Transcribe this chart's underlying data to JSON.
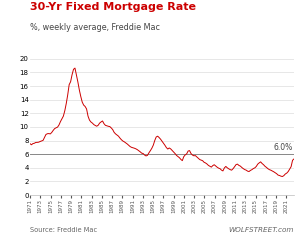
{
  "title": "30-Yr Fixed Mortgage Rate",
  "subtitle": "%, weekly average, Freddie Mac",
  "source_left": "Source: Freddie Mac",
  "source_right": "WOLFSTREET.com",
  "line_color": "#cc0000",
  "hline_value": 6.0,
  "hline_label": "6.0%",
  "hline_color": "#888888",
  "ylim": [
    0,
    20
  ],
  "yticks": [
    0,
    2,
    4,
    6,
    8,
    10,
    12,
    14,
    16,
    18,
    20
  ],
  "title_color": "#cc0000",
  "subtitle_color": "#444444",
  "bg_color": "#ffffff",
  "xtick_years": [
    "1971",
    "1973",
    "1975",
    "1977",
    "1979",
    "1981",
    "1983",
    "1985",
    "1987",
    "1989",
    "1991",
    "1993",
    "1995",
    "1997",
    "1999",
    "2001",
    "2003",
    "2005",
    "2007",
    "2009",
    "2011",
    "2013",
    "2015",
    "2017",
    "2019",
    "2021"
  ],
  "rates": [
    7.54,
    7.38,
    7.55,
    7.6,
    7.72,
    7.73,
    7.76,
    7.86,
    7.94,
    8.02,
    8.45,
    8.89,
    9.0,
    9.02,
    8.97,
    9.19,
    9.49,
    9.75,
    9.87,
    9.97,
    10.29,
    10.78,
    11.17,
    11.58,
    12.38,
    13.44,
    14.7,
    16.2,
    16.63,
    17.66,
    18.45,
    18.63,
    17.6,
    16.6,
    15.43,
    14.47,
    13.64,
    13.2,
    13.0,
    12.63,
    11.58,
    11.0,
    10.72,
    10.56,
    10.34,
    10.21,
    10.1,
    10.24,
    10.56,
    10.73,
    10.87,
    10.47,
    10.23,
    10.16,
    10.09,
    10.05,
    9.85,
    9.61,
    9.2,
    8.97,
    8.8,
    8.64,
    8.36,
    8.12,
    7.93,
    7.81,
    7.66,
    7.5,
    7.3,
    7.12,
    7.0,
    6.94,
    6.87,
    6.78,
    6.66,
    6.5,
    6.34,
    6.15,
    6.09,
    5.87,
    5.74,
    5.83,
    6.2,
    6.52,
    6.87,
    7.32,
    8.0,
    8.52,
    8.64,
    8.44,
    8.2,
    7.91,
    7.63,
    7.31,
    6.97,
    6.75,
    6.91,
    6.77,
    6.54,
    6.3,
    6.09,
    5.82,
    5.65,
    5.48,
    5.23,
    5.05,
    5.63,
    5.89,
    6.04,
    6.46,
    6.52,
    6.09,
    5.87,
    5.76,
    5.79,
    5.59,
    5.38,
    5.21,
    5.12,
    5.04,
    4.81,
    4.71,
    4.56,
    4.35,
    4.23,
    4.1,
    4.32,
    4.45,
    4.27,
    4.09,
    3.95,
    3.87,
    3.66,
    3.54,
    3.98,
    4.2,
    4.0,
    3.85,
    3.73,
    3.65,
    3.87,
    4.15,
    4.46,
    4.54,
    4.35,
    4.25,
    4.05,
    3.88,
    3.74,
    3.66,
    3.51,
    3.45,
    3.62,
    3.73,
    3.89,
    3.99,
    4.2,
    4.54,
    4.72,
    4.87,
    4.63,
    4.45,
    4.22,
    4.06,
    3.87,
    3.73,
    3.65,
    3.54,
    3.42,
    3.28,
    3.14,
    2.93,
    2.87,
    2.77,
    2.72,
    2.85,
    3.09,
    3.22,
    3.45,
    3.82,
    4.16,
    5.1,
    5.3
  ]
}
